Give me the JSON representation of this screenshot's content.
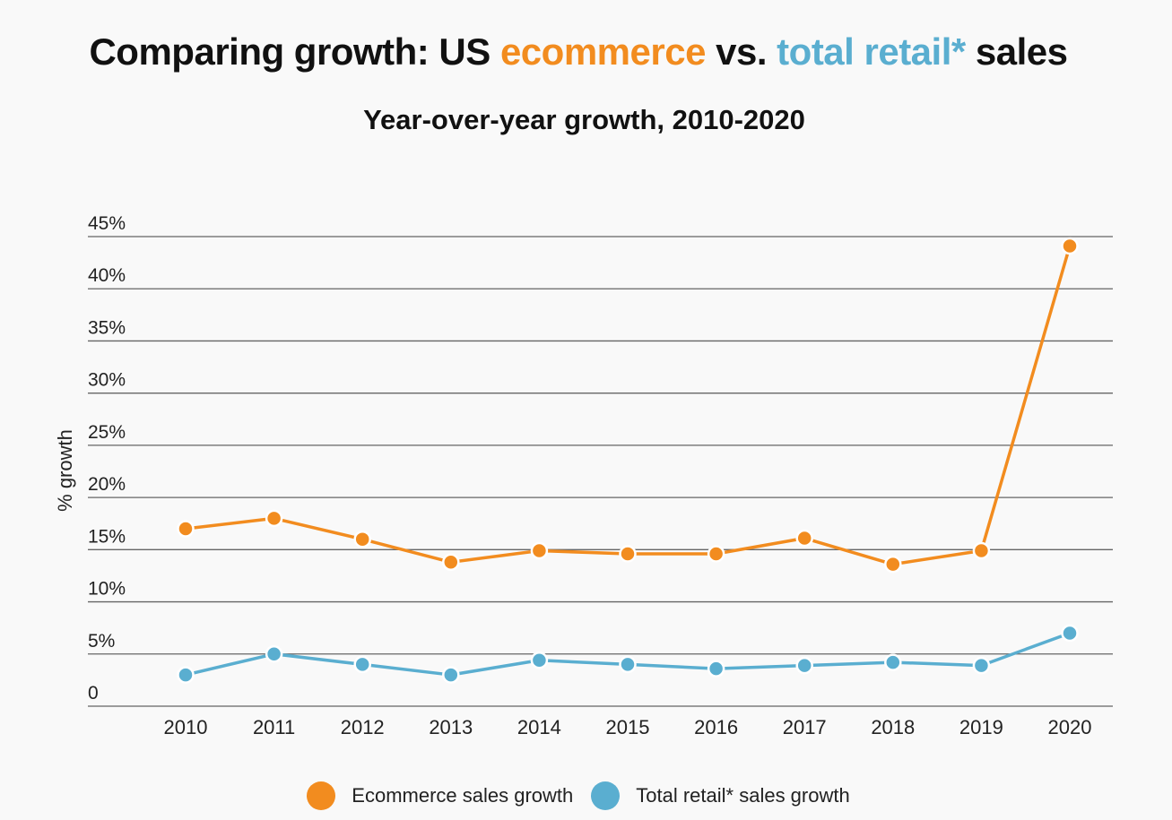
{
  "title": {
    "part1": "Comparing growth: US ",
    "part2": "ecommerce",
    "part3": " vs. ",
    "part4": "total retail*",
    "part5": " sales"
  },
  "subtitle": "Year-over-year growth, 2010-2020",
  "colors": {
    "ecommerce": "#f28c1f",
    "retail": "#5aaed0",
    "grid": "#666666"
  },
  "chart_data": {
    "type": "line",
    "title": "Comparing growth: US ecommerce vs. total retail* sales",
    "subtitle": "Year-over-year growth, 2010-2020",
    "xlabel": "",
    "ylabel": "% growth",
    "categories": [
      "2010",
      "2011",
      "2012",
      "2013",
      "2014",
      "2015",
      "2016",
      "2017",
      "2018",
      "2019",
      "2020"
    ],
    "ylim": [
      0,
      45
    ],
    "yticks": [
      0,
      5,
      10,
      15,
      20,
      25,
      30,
      35,
      40,
      45
    ],
    "ytick_labels": [
      "0",
      "5%",
      "10%",
      "15%",
      "20%",
      "25%",
      "30%",
      "35%",
      "40%",
      "45%"
    ],
    "grid": true,
    "legend_position": "bottom-center",
    "series": [
      {
        "name": "Ecommerce sales growth",
        "color": "#f28c1f",
        "values": [
          17.0,
          18.0,
          16.0,
          13.8,
          14.9,
          14.6,
          14.6,
          16.1,
          13.6,
          14.9,
          44.1
        ]
      },
      {
        "name": "Total retail* sales growth",
        "color": "#5aaed0",
        "values": [
          3.0,
          5.0,
          4.0,
          3.0,
          4.4,
          4.0,
          3.6,
          3.9,
          4.2,
          3.9,
          7.0
        ]
      }
    ]
  }
}
